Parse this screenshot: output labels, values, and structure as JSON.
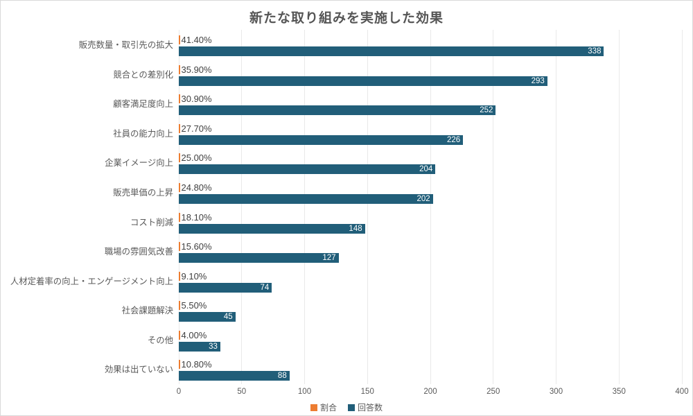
{
  "title": "新たな取り組みを実施した効果",
  "colors": {
    "ratio_series": "#ED7D31",
    "count_series": "#215E79",
    "gridline": "#E9E9E9",
    "title_text": "#555555",
    "axis_text": "#595959",
    "pct_label_text": "#404040",
    "count_label_text": "#FFFFFF",
    "frame_border": "#D9D9D9",
    "background": "#FFFFFF"
  },
  "chart_data": {
    "type": "bar",
    "orientation": "horizontal",
    "title": "新たな取り組みを実施した効果",
    "xlabel": "",
    "ylabel": "",
    "xlim": [
      0,
      400
    ],
    "xticks": [
      0,
      50,
      100,
      150,
      200,
      250,
      300,
      350,
      400
    ],
    "grid": true,
    "legend_position": "bottom",
    "categories": [
      "販売数量・取引先の拡大",
      "競合との差別化",
      "顧客満足度向上",
      "社員の能力向上",
      "企業イメージ向上",
      "販売単価の上昇",
      "コスト削減",
      "職場の雰囲気改善",
      "人材定着率の向上・エンゲージメント向上",
      "社会課題解決",
      "その他",
      "効果は出ていない"
    ],
    "series": [
      {
        "name": "割合",
        "color": "#ED7D31",
        "unit": "%",
        "values": [
          41.4,
          35.9,
          30.9,
          27.7,
          25.0,
          24.8,
          18.1,
          15.6,
          9.1,
          5.5,
          4.0,
          10.8
        ],
        "labels": [
          "41.40%",
          "35.90%",
          "30.90%",
          "27.70%",
          "25.00%",
          "24.80%",
          "18.10%",
          "15.60%",
          "9.10%",
          "5.50%",
          "4.00%",
          "10.80%"
        ]
      },
      {
        "name": "回答数",
        "color": "#215E79",
        "unit": "",
        "values": [
          338,
          293,
          252,
          226,
          204,
          202,
          148,
          127,
          74,
          45,
          33,
          88
        ],
        "labels": [
          "338",
          "293",
          "252",
          "226",
          "204",
          "202",
          "148",
          "127",
          "74",
          "45",
          "33",
          "88"
        ]
      }
    ]
  },
  "legend": {
    "items": [
      {
        "label": "割合",
        "color": "#ED7D31"
      },
      {
        "label": "回答数",
        "color": "#215E79"
      }
    ]
  }
}
